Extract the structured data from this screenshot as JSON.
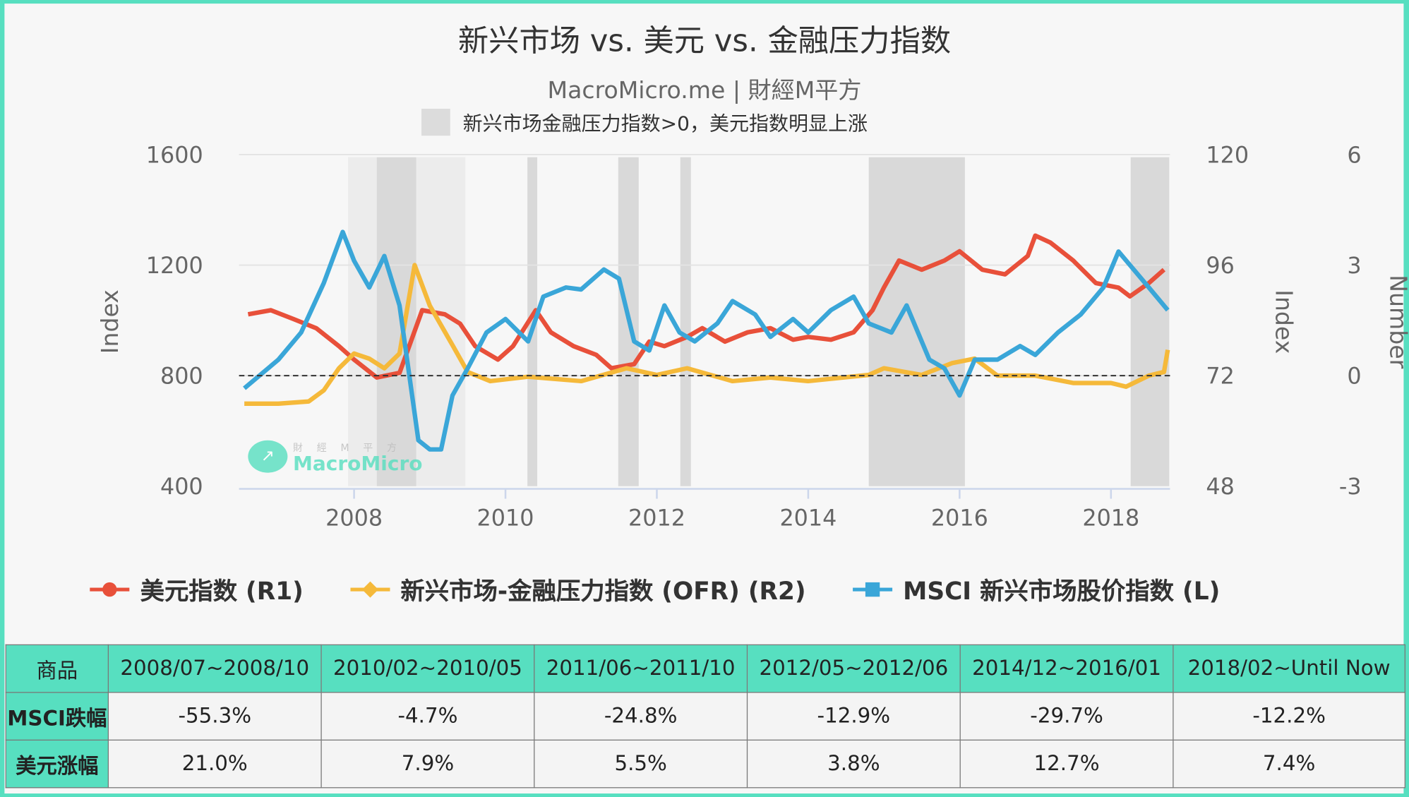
{
  "title": "新兴市场 vs. 美元 vs. 金融压力指数",
  "subtitle": "MacroMicro.me | 財經M平方",
  "band_legend": "新兴市场金融压力指数>0，美元指数明显上涨",
  "watermark": {
    "cn": "財 經 M 平 方",
    "en": "MacroMicro"
  },
  "colors": {
    "r1": "#e8503a",
    "r2": "#f5b93a",
    "l": "#3aa6d8",
    "band": "#d9d9d9",
    "band_light": "#ececec",
    "border": "#57dfc0"
  },
  "chart_data": {
    "type": "line",
    "title": "新兴市场 vs. 美元 vs. 金融压力指数",
    "xlim": [
      2006.48,
      2018.78
    ],
    "x_ticks": [
      "2008",
      "2010",
      "2012",
      "2014",
      "2016",
      "2018"
    ],
    "axes": {
      "left": {
        "label": "Index",
        "ylim": [
          400,
          1600
        ],
        "ticks": [
          "400",
          "800",
          "1200",
          "1600"
        ]
      },
      "right1": {
        "label": "Index",
        "ylim": [
          48,
          120
        ],
        "ticks": [
          "48",
          "72",
          "96",
          "120"
        ]
      },
      "right2": {
        "label": "Number",
        "ylim": [
          -3,
          6
        ],
        "ticks": [
          "-3",
          "0",
          "3",
          "6"
        ]
      }
    },
    "reference_line": {
      "axis": "right2",
      "value": 0,
      "style": "dashed"
    },
    "bands_light": [
      [
        2007.92,
        2009.47
      ]
    ],
    "bands": [
      [
        2008.3,
        2008.82
      ],
      [
        2010.29,
        2010.42
      ],
      [
        2011.49,
        2011.76
      ],
      [
        2012.31,
        2012.45
      ],
      [
        2014.8,
        2016.07
      ],
      [
        2018.26,
        2018.77
      ]
    ],
    "series": [
      {
        "name": "美元指数 (R1)",
        "axis": "right1",
        "color": "#e8503a",
        "x": [
          2006.6,
          2006.9,
          2007.2,
          2007.5,
          2007.8,
          2008.0,
          2008.3,
          2008.6,
          2008.75,
          2008.9,
          2009.2,
          2009.4,
          2009.6,
          2009.9,
          2010.1,
          2010.4,
          2010.6,
          2010.9,
          2011.2,
          2011.4,
          2011.7,
          2011.9,
          2012.1,
          2012.4,
          2012.6,
          2012.9,
          2013.2,
          2013.5,
          2013.8,
          2014.0,
          2014.3,
          2014.6,
          2014.85,
          2015.0,
          2015.2,
          2015.5,
          2015.8,
          2016.0,
          2016.3,
          2016.6,
          2016.9,
          2017.0,
          2017.2,
          2017.5,
          2017.8,
          2018.1,
          2018.25,
          2018.5,
          2018.7
        ],
        "y": [
          85.3,
          86.2,
          84.3,
          82.3,
          78.4,
          75.5,
          71.6,
          72.6,
          79.4,
          86.2,
          85.3,
          83.3,
          78.4,
          75.5,
          78.4,
          86.2,
          81.4,
          78.4,
          76.5,
          73.6,
          74.5,
          79.4,
          78.4,
          80.4,
          82.3,
          79.4,
          81.4,
          82.3,
          79.8,
          80.4,
          79.8,
          81.4,
          86.2,
          91.1,
          97.0,
          95.0,
          97.0,
          99.0,
          95.0,
          94.0,
          98.0,
          102.4,
          100.9,
          97.0,
          92.1,
          91.1,
          89.2,
          92.1,
          95.0
        ]
      },
      {
        "name": "新兴市场-金融压力指数 (OFR) (R2)",
        "axis": "right2",
        "color": "#f5b93a",
        "x": [
          2006.55,
          2007.0,
          2007.4,
          2007.6,
          2007.8,
          2008.0,
          2008.2,
          2008.4,
          2008.6,
          2008.8,
          2009.0,
          2009.3,
          2009.5,
          2009.8,
          2010.3,
          2011.0,
          2011.6,
          2012.0,
          2012.4,
          2013.0,
          2013.5,
          2014.0,
          2014.8,
          2015.0,
          2015.5,
          2015.9,
          2016.2,
          2016.5,
          2017.0,
          2017.5,
          2018.0,
          2018.2,
          2018.5,
          2018.7,
          2018.75
        ],
        "y": [
          -0.76,
          -0.76,
          -0.7,
          -0.4,
          0.2,
          0.6,
          0.46,
          0.2,
          0.6,
          3.0,
          1.9,
          0.83,
          0.1,
          -0.15,
          -0.03,
          -0.15,
          0.2,
          0.02,
          0.2,
          -0.15,
          -0.05,
          -0.15,
          0.02,
          0.2,
          0.02,
          0.34,
          0.46,
          0.0,
          0.0,
          -0.2,
          -0.2,
          -0.3,
          0.0,
          0.1,
          0.7
        ]
      },
      {
        "name": "MSCI 新兴市场股价指数 (L)",
        "axis": "left",
        "color": "#3aa6d8",
        "x": [
          2006.55,
          2007.0,
          2007.3,
          2007.6,
          2007.85,
          2008.0,
          2008.2,
          2008.4,
          2008.6,
          2008.75,
          2008.85,
          2009.0,
          2009.15,
          2009.3,
          2009.5,
          2009.75,
          2010.0,
          2010.3,
          2010.5,
          2010.8,
          2011.0,
          2011.3,
          2011.5,
          2011.7,
          2011.9,
          2012.1,
          2012.3,
          2012.5,
          2012.8,
          2013.0,
          2013.3,
          2013.5,
          2013.8,
          2014.0,
          2014.3,
          2014.6,
          2014.8,
          2015.1,
          2015.3,
          2015.6,
          2015.8,
          2016.0,
          2016.2,
          2016.5,
          2016.8,
          2017.0,
          2017.3,
          2017.6,
          2017.9,
          2018.1,
          2018.3,
          2018.5,
          2018.75
        ],
        "y": [
          754,
          858,
          956,
          1135,
          1320,
          1216,
          1119,
          1233,
          1054,
          761,
          566,
          533,
          533,
          728,
          826,
          956,
          1005,
          924,
          1086,
          1119,
          1112,
          1184,
          1151,
          924,
          891,
          1054,
          956,
          924,
          989,
          1070,
          1021,
          940,
          1005,
          956,
          1037,
          1086,
          989,
          956,
          1054,
          858,
          826,
          728,
          858,
          858,
          907,
          875,
          956,
          1021,
          1119,
          1249,
          1184,
          1119,
          1037
        ]
      }
    ]
  },
  "table": {
    "headers": [
      "商品",
      "2008/07~2008/10",
      "2010/02~2010/05",
      "2011/06~2011/10",
      "2012/05~2012/06",
      "2014/12~2016/01",
      "2018/02~Until Now"
    ],
    "rows": [
      {
        "label": "MSCI跌幅",
        "values": [
          "-55.3%",
          "-4.7%",
          "-24.8%",
          "-12.9%",
          "-29.7%",
          "-12.2%"
        ]
      },
      {
        "label": "美元涨幅",
        "values": [
          "21.0%",
          "7.9%",
          "5.5%",
          "3.8%",
          "12.7%",
          "7.4%"
        ]
      }
    ]
  }
}
